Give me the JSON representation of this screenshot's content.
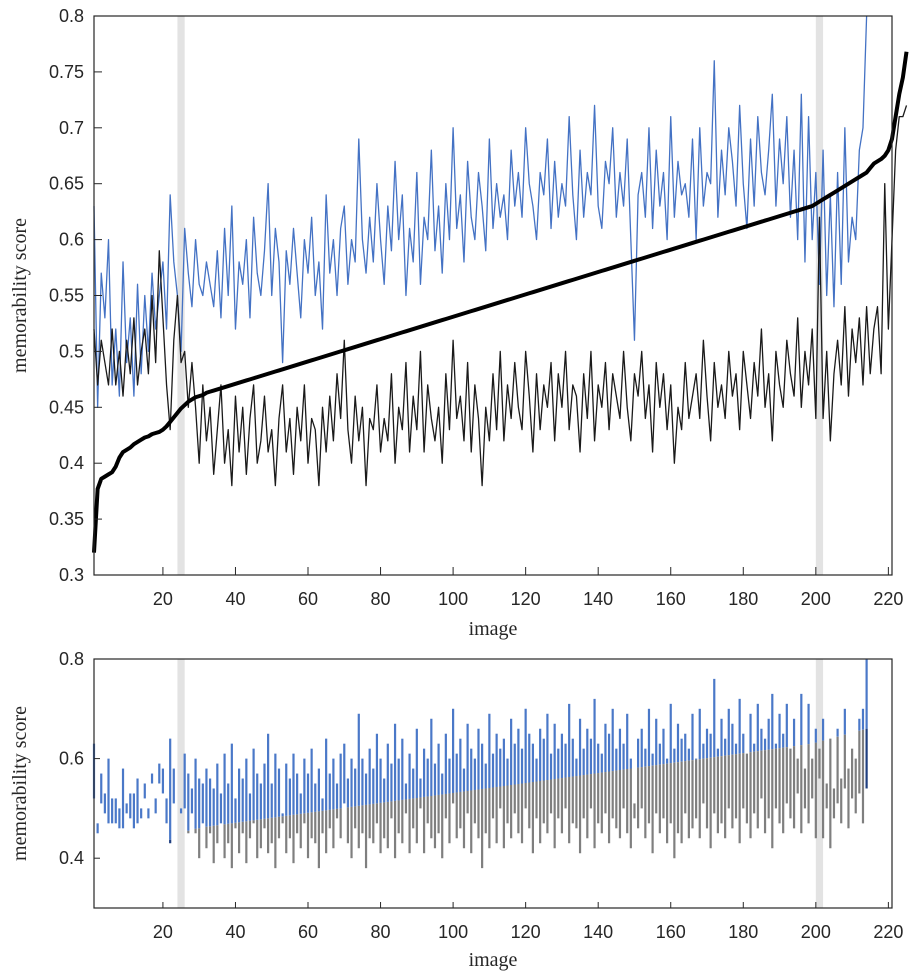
{
  "chart_data": [
    {
      "type": "line",
      "xlabel": "image",
      "ylabel": "memorability score",
      "xlim": [
        1,
        221
      ],
      "ylim": [
        0.3,
        0.8
      ],
      "xticks": [
        20,
        40,
        60,
        80,
        100,
        120,
        140,
        160,
        180,
        200,
        220
      ],
      "yticks": [
        0.3,
        0.35,
        0.4,
        0.45,
        0.5,
        0.55,
        0.6,
        0.65,
        0.7,
        0.75,
        0.8
      ],
      "ytick_labels": [
        "0.3",
        "0.35",
        "0.4",
        "0.45",
        "0.5",
        "0.55",
        "0.6",
        "0.65",
        "0.7",
        "0.75",
        "0.8"
      ],
      "highlight_bands": [
        [
          24,
          26
        ],
        [
          200,
          202
        ]
      ],
      "grid": false,
      "series": [
        {
          "color": "#4472c4",
          "line_width": "thin",
          "values": [
            0.63,
            0.45,
            0.57,
            0.53,
            0.6,
            0.47,
            0.52,
            0.46,
            0.58,
            0.49,
            0.53,
            0.46,
            0.56,
            0.48,
            0.55,
            0.5,
            0.57,
            0.52,
            0.55,
            0.58,
            0.52,
            0.64,
            0.58,
            0.55,
            0.5,
            0.61,
            0.57,
            0.54,
            0.6,
            0.56,
            0.55,
            0.58,
            0.56,
            0.54,
            0.59,
            0.53,
            0.61,
            0.55,
            0.63,
            0.52,
            0.58,
            0.56,
            0.6,
            0.53,
            0.62,
            0.57,
            0.55,
            0.59,
            0.65,
            0.55,
            0.61,
            0.58,
            0.49,
            0.59,
            0.56,
            0.61,
            0.57,
            0.53,
            0.6,
            0.57,
            0.62,
            0.55,
            0.58,
            0.52,
            0.64,
            0.57,
            0.6,
            0.55,
            0.61,
            0.63,
            0.56,
            0.6,
            0.58,
            0.69,
            0.6,
            0.57,
            0.62,
            0.58,
            0.65,
            0.6,
            0.56,
            0.63,
            0.59,
            0.67,
            0.6,
            0.64,
            0.55,
            0.61,
            0.58,
            0.66,
            0.56,
            0.62,
            0.6,
            0.68,
            0.59,
            0.63,
            0.57,
            0.65,
            0.6,
            0.7,
            0.61,
            0.64,
            0.58,
            0.67,
            0.62,
            0.6,
            0.66,
            0.63,
            0.59,
            0.69,
            0.61,
            0.65,
            0.62,
            0.64,
            0.6,
            0.68,
            0.63,
            0.66,
            0.62,
            0.7,
            0.65,
            0.63,
            0.6,
            0.66,
            0.64,
            0.69,
            0.61,
            0.67,
            0.62,
            0.65,
            0.63,
            0.71,
            0.64,
            0.6,
            0.68,
            0.62,
            0.66,
            0.64,
            0.72,
            0.63,
            0.61,
            0.67,
            0.65,
            0.7,
            0.62,
            0.66,
            0.63,
            0.69,
            0.6,
            0.51,
            0.64,
            0.66,
            0.62,
            0.7,
            0.61,
            0.68,
            0.63,
            0.66,
            0.6,
            0.71,
            0.62,
            0.67,
            0.64,
            0.65,
            0.62,
            0.69,
            0.6,
            0.7,
            0.63,
            0.66,
            0.65,
            0.76,
            0.62,
            0.68,
            0.64,
            0.7,
            0.67,
            0.63,
            0.72,
            0.65,
            0.61,
            0.69,
            0.63,
            0.71,
            0.66,
            0.64,
            0.68,
            0.73,
            0.63,
            0.69,
            0.65,
            0.71,
            0.62,
            0.68,
            0.6,
            0.73,
            0.58,
            0.71,
            0.6,
            0.66,
            0.56,
            0.68,
            0.55,
            0.64,
            0.54,
            0.66,
            0.56,
            0.7,
            0.58,
            0.62,
            0.6,
            0.68,
            0.7,
            0.8
          ]
        },
        {
          "color": "#1a1a1a",
          "line_width": "thin",
          "values": [
            0.52,
            0.47,
            0.51,
            0.49,
            0.47,
            0.52,
            0.47,
            0.5,
            0.46,
            0.51,
            0.48,
            0.53,
            0.47,
            0.5,
            0.52,
            0.48,
            0.55,
            0.49,
            0.59,
            0.53,
            0.47,
            0.43,
            0.51,
            0.55,
            0.49,
            0.5,
            0.45,
            0.49,
            0.45,
            0.4,
            0.47,
            0.42,
            0.45,
            0.39,
            0.43,
            0.47,
            0.4,
            0.43,
            0.38,
            0.46,
            0.41,
            0.45,
            0.39,
            0.44,
            0.47,
            0.4,
            0.42,
            0.46,
            0.41,
            0.43,
            0.38,
            0.44,
            0.47,
            0.41,
            0.44,
            0.39,
            0.45,
            0.42,
            0.47,
            0.4,
            0.44,
            0.43,
            0.38,
            0.45,
            0.41,
            0.46,
            0.42,
            0.48,
            0.44,
            0.51,
            0.43,
            0.4,
            0.46,
            0.42,
            0.45,
            0.38,
            0.44,
            0.43,
            0.47,
            0.41,
            0.44,
            0.42,
            0.48,
            0.4,
            0.45,
            0.43,
            0.49,
            0.41,
            0.46,
            0.43,
            0.5,
            0.41,
            0.47,
            0.44,
            0.42,
            0.45,
            0.4,
            0.48,
            0.43,
            0.51,
            0.44,
            0.46,
            0.42,
            0.49,
            0.41,
            0.47,
            0.44,
            0.38,
            0.45,
            0.42,
            0.48,
            0.43,
            0.5,
            0.42,
            0.47,
            0.44,
            0.49,
            0.45,
            0.43,
            0.5,
            0.46,
            0.41,
            0.48,
            0.43,
            0.47,
            0.45,
            0.49,
            0.42,
            0.48,
            0.45,
            0.5,
            0.43,
            0.47,
            0.46,
            0.41,
            0.48,
            0.44,
            0.5,
            0.42,
            0.47,
            0.45,
            0.49,
            0.43,
            0.48,
            0.46,
            0.44,
            0.5,
            0.45,
            0.42,
            0.48,
            0.46,
            0.5,
            0.44,
            0.47,
            0.41,
            0.49,
            0.45,
            0.48,
            0.43,
            0.47,
            0.4,
            0.45,
            0.43,
            0.49,
            0.44,
            0.46,
            0.48,
            0.44,
            0.51,
            0.46,
            0.42,
            0.49,
            0.45,
            0.47,
            0.44,
            0.5,
            0.46,
            0.48,
            0.43,
            0.5,
            0.47,
            0.44,
            0.49,
            0.46,
            0.52,
            0.45,
            0.48,
            0.42,
            0.5,
            0.47,
            0.45,
            0.51,
            0.48,
            0.46,
            0.53,
            0.45,
            0.5,
            0.47,
            0.52,
            0.44,
            0.62,
            0.44,
            0.5,
            0.42,
            0.48,
            0.51,
            0.47,
            0.54,
            0.46,
            0.52,
            0.49,
            0.53,
            0.47,
            0.54,
            0.48,
            0.52,
            0.54,
            0.48,
            0.65,
            0.52,
            0.6,
            0.68,
            0.71,
            0.71,
            0.72
          ]
        },
        {
          "color": "#000000",
          "line_width": "thick",
          "values": [
            0.32,
            0.377,
            0.386,
            0.388,
            0.39,
            0.392,
            0.397,
            0.405,
            0.41,
            0.412,
            0.414,
            0.417,
            0.419,
            0.421,
            0.423,
            0.424,
            0.426,
            0.427,
            0.428,
            0.43,
            0.433,
            0.437,
            0.441,
            0.445,
            0.449,
            0.452,
            0.455,
            0.457,
            0.459,
            0.46,
            0.461,
            0.463,
            0.464,
            0.465,
            0.466,
            0.467,
            0.468,
            0.469,
            0.47,
            0.471,
            0.472,
            0.473,
            0.474,
            0.475,
            0.476,
            0.477,
            0.478,
            0.479,
            0.48,
            0.481,
            0.482,
            0.483,
            0.484,
            0.485,
            0.486,
            0.487,
            0.488,
            0.489,
            0.49,
            0.491,
            0.492,
            0.493,
            0.494,
            0.495,
            0.496,
            0.497,
            0.498,
            0.499,
            0.5,
            0.501,
            0.502,
            0.503,
            0.504,
            0.505,
            0.506,
            0.507,
            0.508,
            0.509,
            0.51,
            0.511,
            0.512,
            0.513,
            0.514,
            0.515,
            0.516,
            0.517,
            0.518,
            0.519,
            0.52,
            0.521,
            0.522,
            0.523,
            0.524,
            0.525,
            0.526,
            0.527,
            0.528,
            0.529,
            0.53,
            0.531,
            0.532,
            0.533,
            0.534,
            0.535,
            0.536,
            0.537,
            0.538,
            0.539,
            0.54,
            0.541,
            0.542,
            0.543,
            0.544,
            0.545,
            0.546,
            0.547,
            0.548,
            0.549,
            0.55,
            0.551,
            0.552,
            0.553,
            0.554,
            0.555,
            0.556,
            0.557,
            0.558,
            0.559,
            0.56,
            0.561,
            0.562,
            0.563,
            0.564,
            0.565,
            0.566,
            0.567,
            0.568,
            0.569,
            0.57,
            0.571,
            0.572,
            0.573,
            0.574,
            0.575,
            0.576,
            0.577,
            0.578,
            0.579,
            0.58,
            0.581,
            0.582,
            0.583,
            0.584,
            0.585,
            0.586,
            0.587,
            0.588,
            0.589,
            0.59,
            0.591,
            0.592,
            0.593,
            0.594,
            0.595,
            0.596,
            0.597,
            0.598,
            0.599,
            0.6,
            0.601,
            0.602,
            0.603,
            0.604,
            0.605,
            0.606,
            0.607,
            0.608,
            0.609,
            0.61,
            0.611,
            0.612,
            0.613,
            0.614,
            0.615,
            0.616,
            0.617,
            0.618,
            0.619,
            0.62,
            0.621,
            0.622,
            0.623,
            0.624,
            0.625,
            0.626,
            0.627,
            0.628,
            0.629,
            0.63,
            0.632,
            0.634,
            0.636,
            0.638,
            0.64,
            0.642,
            0.644,
            0.646,
            0.648,
            0.65,
            0.652,
            0.654,
            0.656,
            0.658,
            0.66,
            0.664,
            0.668,
            0.67,
            0.672,
            0.675,
            0.68,
            0.69,
            0.71,
            0.73,
            0.745,
            0.768
          ]
        }
      ]
    },
    {
      "type": "bar",
      "subtype": "range",
      "xlabel": "image",
      "ylabel": "memorability score",
      "xlim": [
        1,
        221
      ],
      "ylim": [
        0.3,
        0.8
      ],
      "xticks": [
        20,
        40,
        60,
        80,
        100,
        120,
        140,
        160,
        180,
        200,
        220
      ],
      "yticks": [
        0.4,
        0.6,
        0.8
      ],
      "ytick_labels": [
        "0.4",
        "0.6",
        "0.8"
      ],
      "highlight_bands": [
        [
          24,
          26
        ],
        [
          200,
          202
        ]
      ],
      "grid": false,
      "description_source": "each bar spans the two subgroup scores of the top panel at the same image index",
      "colors": {
        "above_mean": "#4a78c8",
        "below_mean": "#7f7f7f",
        "overlap": "#1f3f80"
      }
    }
  ]
}
